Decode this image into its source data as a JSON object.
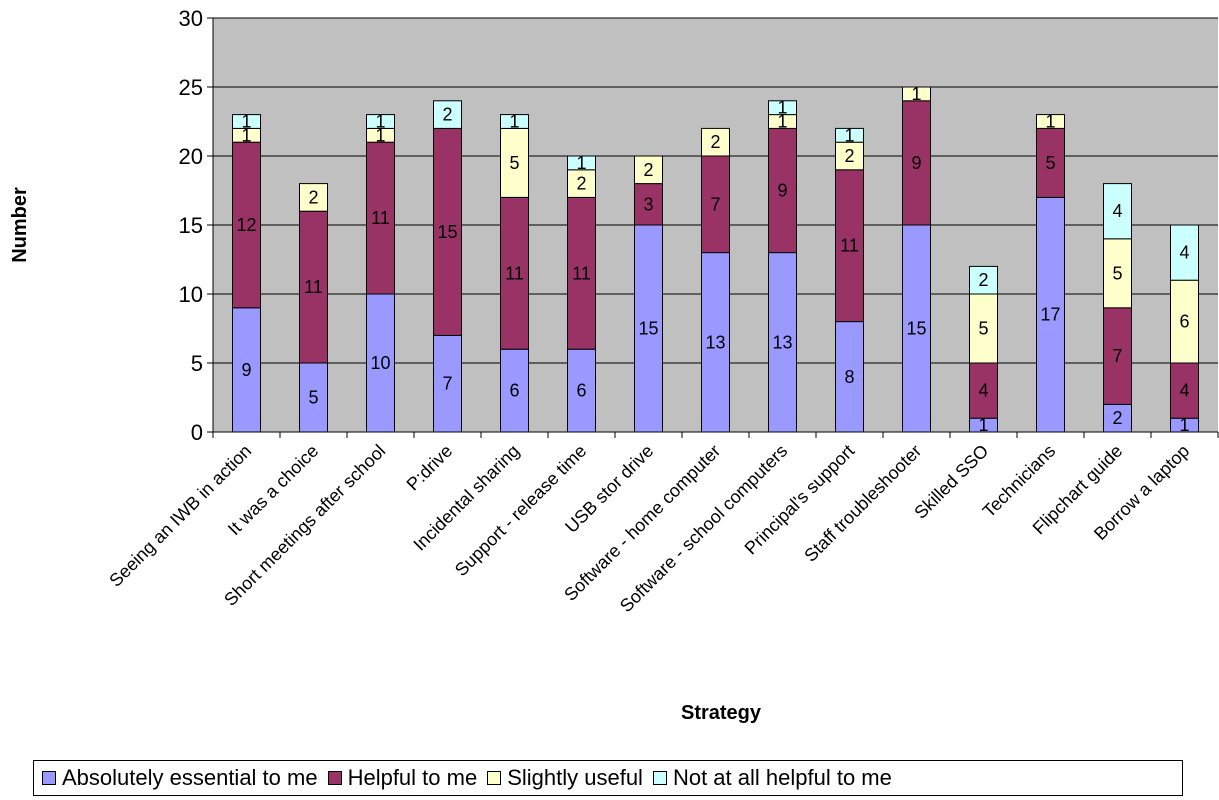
{
  "chart_data": {
    "type": "bar",
    "stacked": true,
    "xlabel": "Strategy",
    "ylabel": "Number",
    "ylim": [
      0,
      30
    ],
    "yticks": [
      0,
      5,
      10,
      15,
      20,
      25,
      30
    ],
    "grid": true,
    "plot_background": "#c0c0c0",
    "legend_position": "bottom",
    "categories": [
      "Seeing an IWB in action",
      "It was a choice",
      "Short meetings after school",
      "P:drive",
      "Incidental sharing",
      "Support - release time",
      "USB stor drive",
      "Software - home computer",
      "Software - school computers",
      "Principal's support",
      "Staff troubleshooter",
      "Skilled SSO",
      "Technicians",
      "Flipchart guide",
      "Borrow a laptop"
    ],
    "series": [
      {
        "name": "Absolutely essential to me",
        "color": "#9999ff",
        "values": [
          9,
          5,
          10,
          7,
          6,
          6,
          15,
          13,
          13,
          8,
          15,
          1,
          17,
          2,
          1
        ]
      },
      {
        "name": "Helpful to me",
        "color": "#993366",
        "values": [
          12,
          11,
          11,
          15,
          11,
          11,
          3,
          7,
          9,
          11,
          9,
          4,
          5,
          7,
          4
        ]
      },
      {
        "name": "Slightly useful",
        "color": "#ffffcc",
        "values": [
          1,
          2,
          1,
          0,
          5,
          2,
          2,
          2,
          1,
          2,
          1,
          5,
          1,
          5,
          6
        ]
      },
      {
        "name": "Not at all helpful to me",
        "color": "#ccffff",
        "values": [
          1,
          0,
          1,
          2,
          1,
          1,
          0,
          0,
          1,
          1,
          0,
          2,
          0,
          4,
          4
        ]
      }
    ]
  }
}
